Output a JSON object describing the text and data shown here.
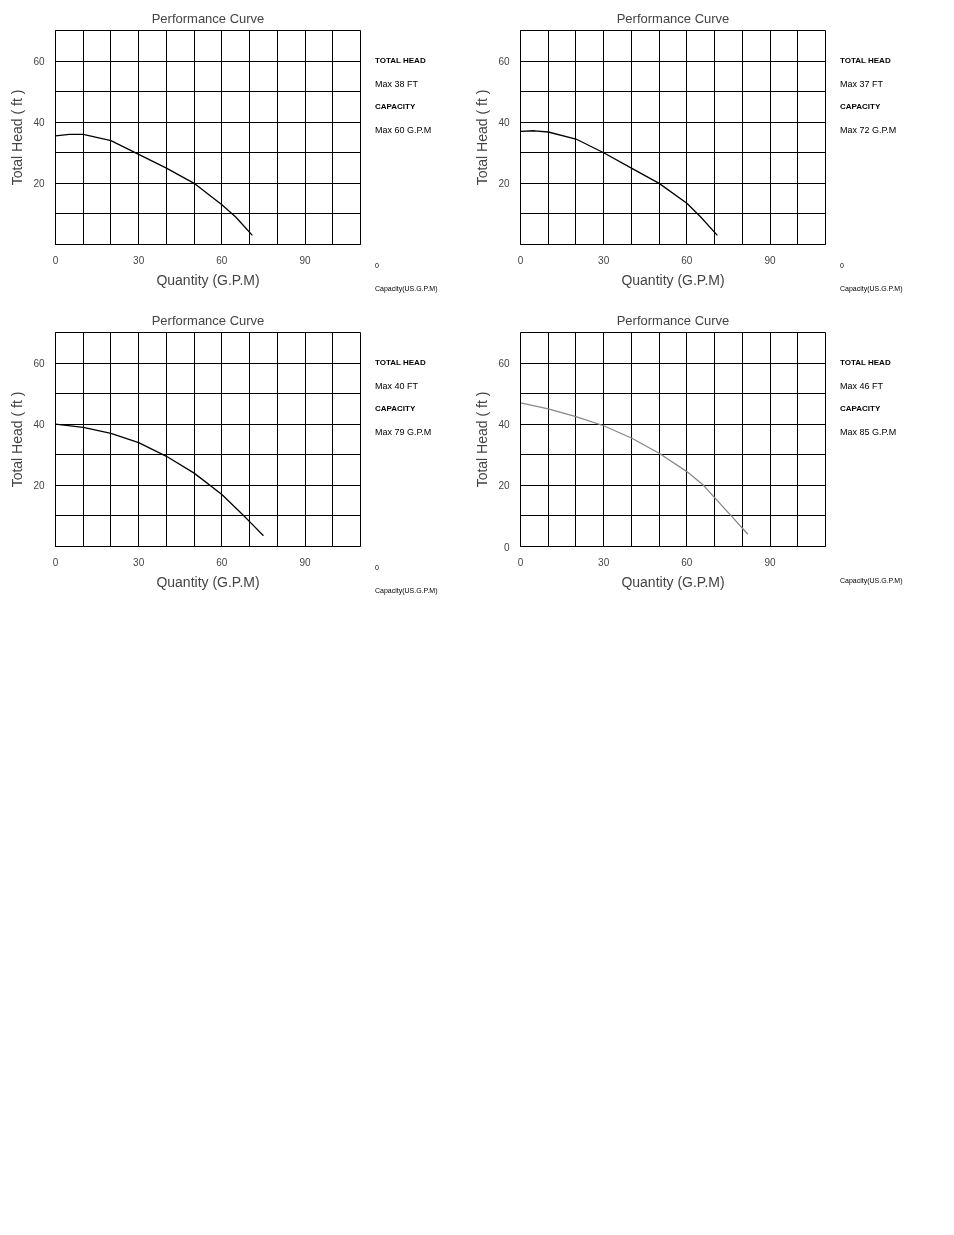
{
  "chart_data": [
    {
      "type": "line",
      "title": "Performance Curve",
      "xlabel": "Quantity (G.P.M)",
      "ylabel": "Total Head ( ft )",
      "x": [
        0,
        5,
        10,
        20,
        30,
        40,
        50,
        60,
        65,
        71
      ],
      "series": [
        {
          "color": "#000000",
          "values": [
            35.5,
            36,
            36,
            34,
            29.5,
            25,
            20,
            13,
            9,
            3
          ]
        }
      ],
      "xlim": [
        0,
        110
      ],
      "ylim": [
        0,
        70
      ],
      "xticks": [
        0,
        {
          "value": 10,
          "label": null
        },
        {
          "value": 20,
          "label": null
        },
        30,
        {
          "value": 40,
          "label": null
        },
        {
          "value": 50,
          "label": null
        },
        60,
        {
          "value": 70,
          "label": null
        },
        {
          "value": 80,
          "label": null
        },
        90,
        {
          "value": 100,
          "label": null
        },
        {
          "value": 110,
          "label": null
        }
      ],
      "yticks": [
        {
          "value": 0,
          "label": null
        },
        {
          "value": 10,
          "label": null
        },
        20,
        {
          "value": 30,
          "label": null
        },
        40,
        {
          "value": 50,
          "label": null
        },
        60,
        {
          "value": 70,
          "label": null
        }
      ],
      "grid": true,
      "annotations": [
        "TOTAL HEAD",
        "Max 38 FT",
        "CAPACITY",
        "Max 60 G.P.M",
        "0",
        "Capacity(US.G.P.M)"
      ]
    },
    {
      "type": "line",
      "title": "Performance Curve",
      "xlabel": "Quantity (G.P.M)",
      "ylabel": "Total Head ( ft )",
      "x": [
        0,
        5,
        10,
        20,
        30,
        40,
        50,
        60,
        65,
        71
      ],
      "series": [
        {
          "color": "#000000",
          "values": [
            37,
            37.2,
            36.8,
            34.5,
            30,
            25,
            20,
            13.5,
            9,
            3
          ]
        }
      ],
      "xlim": [
        0,
        110
      ],
      "ylim": [
        0,
        70
      ],
      "xticks": [
        0,
        {
          "value": 10,
          "label": null
        },
        {
          "value": 20,
          "label": null
        },
        30,
        {
          "value": 40,
          "label": null
        },
        {
          "value": 50,
          "label": null
        },
        60,
        {
          "value": 70,
          "label": null
        },
        {
          "value": 80,
          "label": null
        },
        90,
        {
          "value": 100,
          "label": null
        },
        {
          "value": 110,
          "label": null
        }
      ],
      "yticks": [
        {
          "value": 0,
          "label": null
        },
        {
          "value": 10,
          "label": null
        },
        20,
        {
          "value": 30,
          "label": null
        },
        40,
        {
          "value": 50,
          "label": null
        },
        60,
        {
          "value": 70,
          "label": null
        }
      ],
      "grid": true,
      "annotations": [
        "TOTAL HEAD",
        "Max 37 FT",
        "CAPACITY",
        "Max 72 G.P.M",
        "0",
        "Capacity(US.G.P.M)"
      ]
    },
    {
      "type": "line",
      "title": "Performance Curve",
      "xlabel": "Quantity (G.P.M)",
      "ylabel": "Total Head ( ft )",
      "x": [
        0,
        10,
        20,
        30,
        40,
        50,
        60,
        68,
        75
      ],
      "series": [
        {
          "color": "#000000",
          "values": [
            40,
            39,
            37,
            34,
            29.5,
            24,
            17,
            10,
            3.5
          ]
        }
      ],
      "xlim": [
        0,
        110
      ],
      "ylim": [
        0,
        70
      ],
      "xticks": [
        0,
        {
          "value": 10,
          "label": null
        },
        {
          "value": 20,
          "label": null
        },
        30,
        {
          "value": 40,
          "label": null
        },
        {
          "value": 50,
          "label": null
        },
        60,
        {
          "value": 70,
          "label": null
        },
        {
          "value": 80,
          "label": null
        },
        90,
        {
          "value": 100,
          "label": null
        },
        {
          "value": 110,
          "label": null
        }
      ],
      "yticks": [
        {
          "value": 0,
          "label": null
        },
        {
          "value": 10,
          "label": null
        },
        20,
        {
          "value": 30,
          "label": null
        },
        40,
        {
          "value": 50,
          "label": null
        },
        60,
        {
          "value": 70,
          "label": null
        }
      ],
      "grid": true,
      "annotations": [
        "TOTAL HEAD",
        "Max 40 FT",
        "CAPACITY",
        "Max 79 G.P.M",
        "0",
        "Capacity(US.G.P.M)"
      ]
    },
    {
      "type": "line",
      "title": "Performance Curve",
      "xlabel": "Quantity (G.P.M)",
      "ylabel": "Total Head ( ft )",
      "x": [
        0,
        10,
        20,
        30,
        40,
        50,
        60,
        66,
        70,
        76,
        82
      ],
      "series": [
        {
          "color": "#888888",
          "values": [
            47,
            45,
            42.5,
            39.5,
            35.5,
            30.5,
            24.5,
            20,
            16,
            10,
            4
          ]
        }
      ],
      "xlim": [
        0,
        110
      ],
      "ylim": [
        0,
        70
      ],
      "xticks": [
        0,
        {
          "value": 10,
          "label": null
        },
        {
          "value": 20,
          "label": null
        },
        30,
        {
          "value": 40,
          "label": null
        },
        {
          "value": 50,
          "label": null
        },
        60,
        {
          "value": 70,
          "label": null
        },
        {
          "value": 80,
          "label": null
        },
        90,
        {
          "value": 100,
          "label": null
        },
        {
          "value": 110,
          "label": null
        }
      ],
      "yticks": [
        0,
        {
          "value": 10,
          "label": null
        },
        20,
        {
          "value": 30,
          "label": null
        },
        40,
        {
          "value": 50,
          "label": null
        },
        60,
        {
          "value": 70,
          "label": null
        }
      ],
      "grid": true,
      "annotations": [
        "TOTAL HEAD",
        "Max 46 FT",
        "CAPACITY",
        "Max 85 G.P.M",
        "Capacity(US.G.P.M)"
      ]
    }
  ]
}
